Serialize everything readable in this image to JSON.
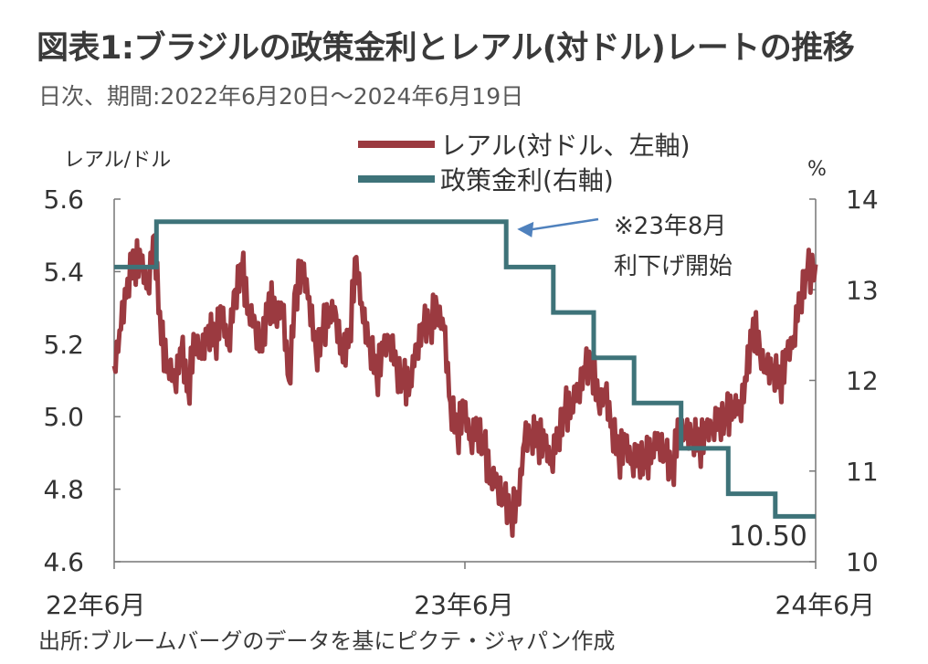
{
  "title": "図表1:ブラジルの政策金利とレアル(対ドル)レートの推移",
  "subtitle": "日次、期間:2022年6月20日〜2024年6月19日",
  "source": "出所:ブルームバーグのデータを基にピクテ・ジャパン作成",
  "colors": {
    "real": "#9b3a40",
    "rate": "#3e7379",
    "arrow": "#4f81bd",
    "axis": "#777777"
  },
  "chart_data": {
    "type": "line",
    "x_labels": [
      "22年6月",
      "23年6月",
      "24年6月"
    ],
    "left_axis": {
      "label": "レアル/ドル",
      "min": 4.6,
      "max": 5.6,
      "ticks": [
        "5.6",
        "5.4",
        "5.2",
        "5.0",
        "4.8",
        "4.6"
      ]
    },
    "right_axis": {
      "label": "%",
      "min": 10,
      "max": 14,
      "ticks": [
        "14",
        "13",
        "12",
        "11",
        "10"
      ]
    },
    "legend": [
      "レアル(対ドル、左軸)",
      "政策金利(右軸)"
    ],
    "annotation": {
      "line1": "※23年8月",
      "line2": "利下げ開始",
      "date": "2023-08-02"
    },
    "end_label": "10.50",
    "series": [
      {
        "name": "レアル(対ドル、左軸)",
        "axis": "left",
        "x": [
          "2022-06-20",
          "2022-06-27",
          "2022-07-04",
          "2022-07-11",
          "2022-07-18",
          "2022-07-25",
          "2022-08-01",
          "2022-08-08",
          "2022-08-15",
          "2022-08-22",
          "2022-08-29",
          "2022-09-05",
          "2022-09-12",
          "2022-09-19",
          "2022-09-26",
          "2022-10-03",
          "2022-10-10",
          "2022-10-17",
          "2022-10-24",
          "2022-10-31",
          "2022-11-07",
          "2022-11-14",
          "2022-11-21",
          "2022-11-28",
          "2022-12-05",
          "2022-12-12",
          "2022-12-19",
          "2022-12-26",
          "2023-01-02",
          "2023-01-09",
          "2023-01-16",
          "2023-01-23",
          "2023-01-30",
          "2023-02-06",
          "2023-02-13",
          "2023-02-20",
          "2023-02-27",
          "2023-03-06",
          "2023-03-13",
          "2023-03-20",
          "2023-03-27",
          "2023-04-03",
          "2023-04-10",
          "2023-04-17",
          "2023-04-24",
          "2023-05-01",
          "2023-05-08",
          "2023-05-15",
          "2023-05-22",
          "2023-05-29",
          "2023-06-05",
          "2023-06-12",
          "2023-06-19",
          "2023-06-26",
          "2023-07-03",
          "2023-07-10",
          "2023-07-17",
          "2023-07-24",
          "2023-07-31",
          "2023-08-07",
          "2023-08-14",
          "2023-08-21",
          "2023-08-28",
          "2023-09-04",
          "2023-09-11",
          "2023-09-18",
          "2023-09-25",
          "2023-10-02",
          "2023-10-09",
          "2023-10-16",
          "2023-10-23",
          "2023-10-30",
          "2023-11-06",
          "2023-11-13",
          "2023-11-20",
          "2023-11-27",
          "2023-12-04",
          "2023-12-11",
          "2023-12-18",
          "2023-12-25",
          "2024-01-01",
          "2024-01-08",
          "2024-01-15",
          "2024-01-22",
          "2024-01-29",
          "2024-02-05",
          "2024-02-12",
          "2024-02-19",
          "2024-02-26",
          "2024-03-04",
          "2024-03-11",
          "2024-03-18",
          "2024-03-25",
          "2024-04-01",
          "2024-04-08",
          "2024-04-15",
          "2024-04-22",
          "2024-04-29",
          "2024-05-06",
          "2024-05-13",
          "2024-05-20",
          "2024-05-27",
          "2024-06-03",
          "2024-06-10",
          "2024-06-19"
        ],
        "values": [
          5.14,
          5.24,
          5.38,
          5.44,
          5.42,
          5.36,
          5.5,
          5.2,
          5.15,
          5.1,
          5.18,
          5.08,
          5.22,
          5.16,
          5.25,
          5.22,
          5.28,
          5.2,
          5.35,
          5.4,
          5.3,
          5.25,
          5.18,
          5.34,
          5.28,
          5.3,
          5.1,
          5.36,
          5.4,
          5.33,
          5.18,
          5.22,
          5.3,
          5.28,
          5.15,
          5.24,
          5.44,
          5.26,
          5.21,
          5.12,
          5.18,
          5.22,
          5.14,
          5.08,
          5.1,
          5.2,
          5.24,
          5.27,
          5.3,
          5.24,
          5.04,
          4.96,
          5.02,
          4.94,
          4.98,
          4.9,
          4.84,
          4.82,
          4.76,
          4.74,
          4.76,
          4.93,
          4.96,
          4.95,
          4.92,
          4.88,
          4.96,
          5.0,
          5.04,
          5.08,
          5.12,
          5.16,
          5.04,
          5.06,
          4.98,
          4.9,
          4.92,
          4.88,
          4.9,
          4.86,
          4.92,
          4.94,
          4.88,
          4.86,
          4.98,
          4.94,
          4.96,
          4.93,
          4.95,
          4.98,
          5.0,
          4.98,
          5.04,
          5.02,
          5.1,
          5.27,
          5.18,
          5.12,
          5.14,
          5.1,
          5.16,
          5.22,
          5.34,
          5.38,
          5.42
        ]
      },
      {
        "name": "政策金利(右軸)",
        "axis": "right",
        "x": [
          "2022-06-20",
          "2022-08-03",
          "2023-08-02",
          "2023-09-20",
          "2023-11-01",
          "2023-12-13",
          "2024-01-31",
          "2024-03-20",
          "2024-05-08",
          "2024-06-19"
        ],
        "values": [
          13.25,
          13.75,
          13.25,
          12.75,
          12.25,
          11.75,
          11.25,
          10.75,
          10.5,
          10.5
        ]
      }
    ]
  }
}
